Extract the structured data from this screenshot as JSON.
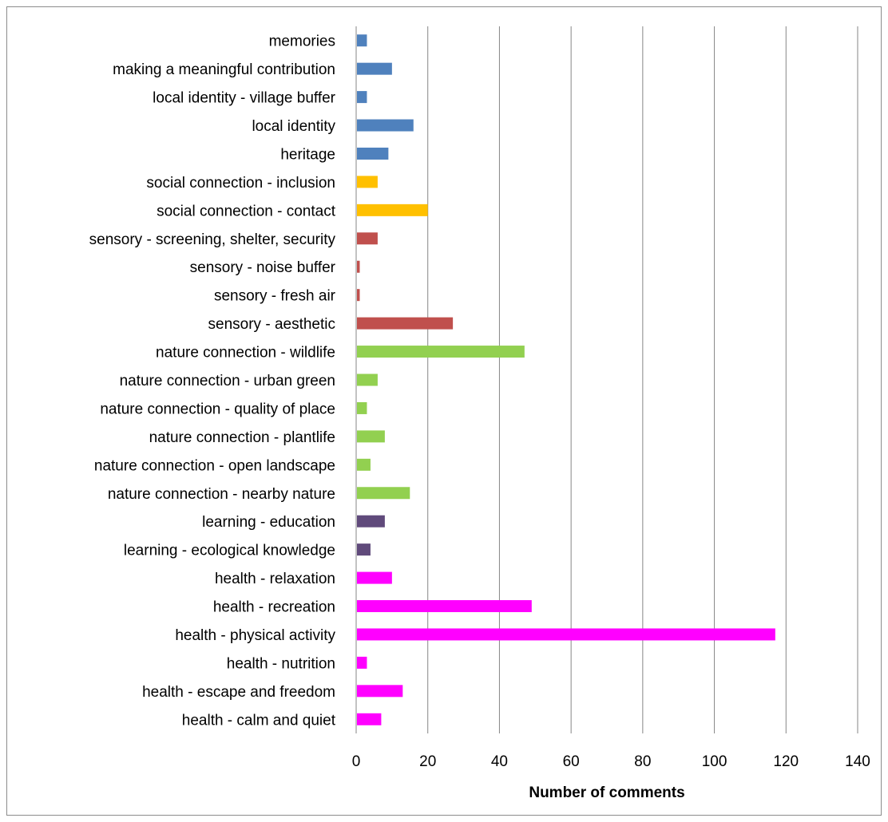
{
  "chart_data": {
    "type": "bar",
    "orientation": "horizontal",
    "title": "",
    "xlabel": "Number of comments",
    "ylabel": "",
    "xlim": [
      0,
      140
    ],
    "x_ticks": [
      0,
      20,
      40,
      60,
      80,
      100,
      120,
      140
    ],
    "grid": "vertical major gridlines",
    "legend": "none",
    "categories": [
      "memories",
      "making a meaningful contribution",
      "local identity - village buffer",
      "local identity",
      "heritage",
      "social connection - inclusion",
      "social connection - contact",
      "sensory - screening, shelter, security",
      "sensory - noise buffer",
      "sensory - fresh air",
      "sensory - aesthetic",
      "nature connection - wildlife",
      "nature connection - urban green",
      "nature connection - quality of place",
      "nature connection - plantlife",
      "nature connection - open landscape",
      "nature connection - nearby nature",
      "learning - education",
      "learning - ecological knowledge",
      "health - relaxation",
      "health - recreation",
      "health - physical activity",
      "health - nutrition",
      "health - escape and freedom",
      "health - calm and quiet"
    ],
    "values": [
      3,
      10,
      3,
      16,
      9,
      6,
      20,
      6,
      1,
      1,
      27,
      47,
      6,
      3,
      8,
      4,
      15,
      8,
      4,
      10,
      49,
      117,
      3,
      13,
      7
    ],
    "bar_colors": [
      "#4f81bd",
      "#4f81bd",
      "#4f81bd",
      "#4f81bd",
      "#4f81bd",
      "#ffc000",
      "#ffc000",
      "#c0504d",
      "#c0504d",
      "#c0504d",
      "#c0504d",
      "#92d050",
      "#92d050",
      "#92d050",
      "#92d050",
      "#92d050",
      "#92d050",
      "#604a7b",
      "#604a7b",
      "#ff00ff",
      "#ff00ff",
      "#ff00ff",
      "#ff00ff",
      "#ff00ff",
      "#ff00ff"
    ],
    "colors": {
      "gridline": "#868686",
      "frame": "#8c8c8c"
    }
  }
}
